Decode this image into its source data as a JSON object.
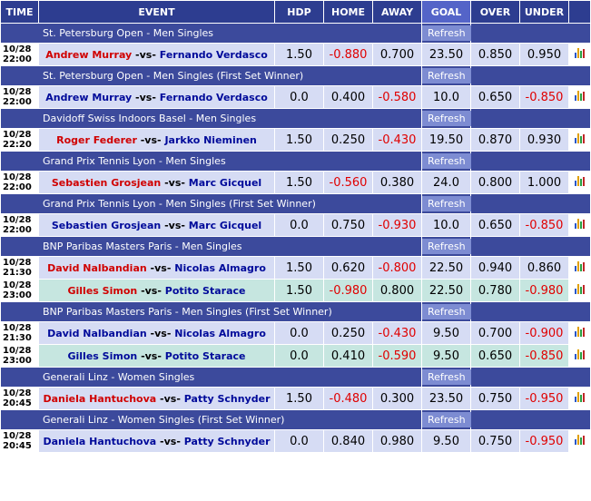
{
  "headers": {
    "time": "TIME",
    "event": "EVENT",
    "hdp": "HDP",
    "home": "HOME",
    "away": "AWAY",
    "goal": "GOAL",
    "over": "OVER",
    "under": "UNDER"
  },
  "refresh_label": "Refresh",
  "leagues": [
    {
      "name": "St. Petersburg Open - Men Singles",
      "matches": [
        {
          "date": "10/28",
          "time": "22:00",
          "home": "Andrew Murray",
          "away": "Fernando Verdasco",
          "fav": "home",
          "hdp": "1.50",
          "home_odds": "-0.880",
          "away_odds": "0.700",
          "goal": "23.50",
          "over": "0.850",
          "under": "0.950"
        }
      ]
    },
    {
      "name": "St. Petersburg Open - Men Singles (First Set Winner)",
      "matches": [
        {
          "date": "10/28",
          "time": "22:00",
          "home": "Andrew Murray",
          "away": "Fernando Verdasco",
          "fav": "none",
          "hdp": "0.0",
          "home_odds": "0.400",
          "away_odds": "-0.580",
          "goal": "10.0",
          "over": "0.650",
          "under": "-0.850"
        }
      ]
    },
    {
      "name": "Davidoff Swiss Indoors Basel - Men Singles",
      "matches": [
        {
          "date": "10/28",
          "time": "22:20",
          "home": "Roger Federer",
          "away": "Jarkko Nieminen",
          "fav": "home",
          "hdp": "1.50",
          "home_odds": "0.250",
          "away_odds": "-0.430",
          "goal": "19.50",
          "over": "0.870",
          "under": "0.930"
        }
      ]
    },
    {
      "name": "Grand Prix Tennis Lyon - Men Singles",
      "matches": [
        {
          "date": "10/28",
          "time": "22:00",
          "home": "Sebastien Grosjean",
          "away": "Marc Gicquel",
          "fav": "home",
          "hdp": "1.50",
          "home_odds": "-0.560",
          "away_odds": "0.380",
          "goal": "24.0",
          "over": "0.800",
          "under": "1.000"
        }
      ]
    },
    {
      "name": "Grand Prix Tennis Lyon - Men Singles (First Set Winner)",
      "matches": [
        {
          "date": "10/28",
          "time": "22:00",
          "home": "Sebastien Grosjean",
          "away": "Marc Gicquel",
          "fav": "none",
          "hdp": "0.0",
          "home_odds": "0.750",
          "away_odds": "-0.930",
          "goal": "10.0",
          "over": "0.650",
          "under": "-0.850"
        }
      ]
    },
    {
      "name": "BNP Paribas Masters Paris - Men Singles",
      "matches": [
        {
          "date": "10/28",
          "time": "21:30",
          "home": "David Nalbandian",
          "away": "Nicolas Almagro",
          "fav": "home",
          "hdp": "1.50",
          "home_odds": "0.620",
          "away_odds": "-0.800",
          "goal": "22.50",
          "over": "0.940",
          "under": "0.860"
        },
        {
          "date": "10/28",
          "time": "23:00",
          "home": "Gilles Simon",
          "away": "Potito Starace",
          "fav": "home",
          "hdp": "1.50",
          "home_odds": "-0.980",
          "away_odds": "0.800",
          "goal": "22.50",
          "over": "0.780",
          "under": "-0.980"
        }
      ]
    },
    {
      "name": "BNP Paribas Masters Paris - Men Singles (First Set Winner)",
      "matches": [
        {
          "date": "10/28",
          "time": "21:30",
          "home": "David Nalbandian",
          "away": "Nicolas Almagro",
          "fav": "none",
          "hdp": "0.0",
          "home_odds": "0.250",
          "away_odds": "-0.430",
          "goal": "9.50",
          "over": "0.700",
          "under": "-0.900"
        },
        {
          "date": "10/28",
          "time": "23:00",
          "home": "Gilles Simon",
          "away": "Potito Starace",
          "fav": "none",
          "hdp": "0.0",
          "home_odds": "0.410",
          "away_odds": "-0.590",
          "goal": "9.50",
          "over": "0.650",
          "under": "-0.850"
        }
      ]
    },
    {
      "name": "Generali Linz - Women Singles",
      "matches": [
        {
          "date": "10/28",
          "time": "20:45",
          "home": "Daniela Hantuchova",
          "away": "Patty Schnyder",
          "fav": "home",
          "hdp": "1.50",
          "home_odds": "-0.480",
          "away_odds": "0.300",
          "goal": "23.50",
          "over": "0.750",
          "under": "-0.950"
        }
      ]
    },
    {
      "name": "Generali Linz - Women Singles (First Set Winner)",
      "matches": [
        {
          "date": "10/28",
          "time": "20:45",
          "home": "Daniela Hantuchova",
          "away": "Patty Schnyder",
          "fav": "none",
          "hdp": "0.0",
          "home_odds": "0.840",
          "away_odds": "0.980",
          "goal": "9.50",
          "over": "0.750",
          "under": "-0.950"
        }
      ]
    }
  ],
  "icon": "bar-chart-icon",
  "colors": {
    "header": "#2d3d90",
    "goal_header": "#5464c8",
    "league_row": "#3c4a9c",
    "match_row": "#d6dcf4",
    "match_row_alt": "#c6e6e0",
    "favorite": "#d00000",
    "underdog": "#000a9a",
    "negative": "#e00000"
  }
}
